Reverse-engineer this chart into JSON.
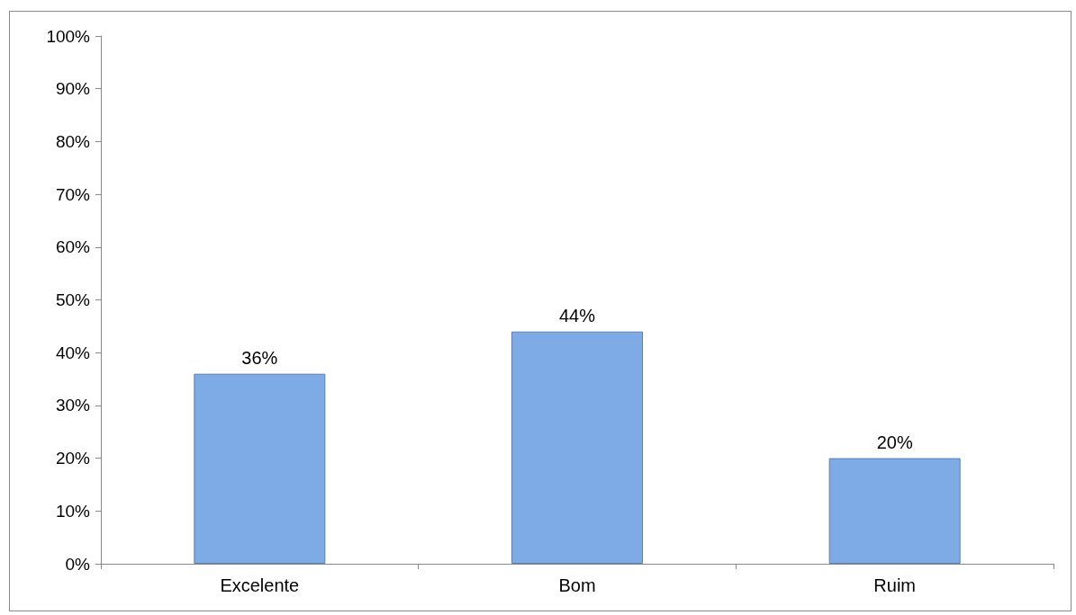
{
  "chart_data": {
    "type": "bar",
    "categories": [
      "Excelente",
      "Bom",
      "Ruim"
    ],
    "values": [
      36,
      44,
      20
    ],
    "color": "#7eaae6",
    "value_labels": [
      "36%",
      "44%",
      "20%"
    ],
    "ylim": [
      0,
      100
    ],
    "yticks": [
      {
        "value": 0,
        "label": "0%"
      },
      {
        "value": 10,
        "label": "10%"
      },
      {
        "value": 20,
        "label": "20%"
      },
      {
        "value": 30,
        "label": "30%"
      },
      {
        "value": 40,
        "label": "40%"
      },
      {
        "value": 50,
        "label": "50%"
      },
      {
        "value": 60,
        "label": "60%"
      },
      {
        "value": 70,
        "label": "70%"
      },
      {
        "value": 80,
        "label": "80%"
      },
      {
        "value": 90,
        "label": "90%"
      },
      {
        "value": 100,
        "label": "100%"
      }
    ],
    "grid": false
  }
}
